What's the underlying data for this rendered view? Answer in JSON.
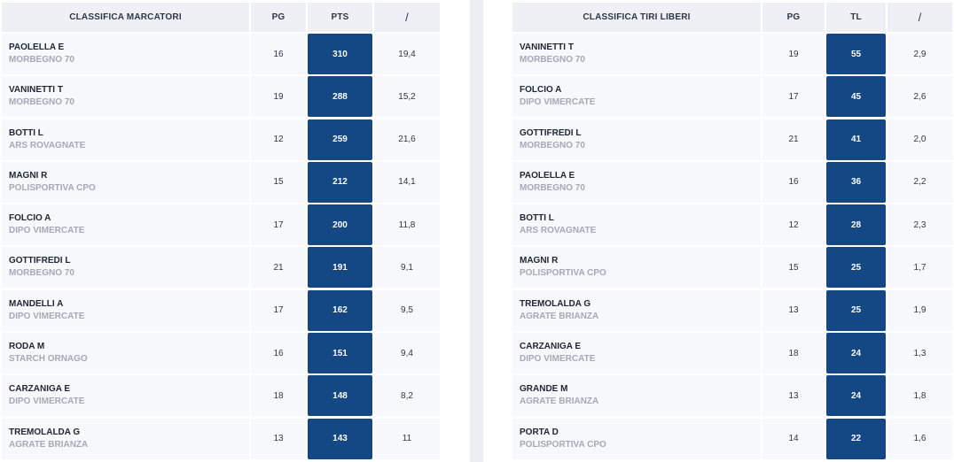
{
  "scorers": {
    "headers": [
      "CLASSIFICA MARCATORI",
      "PG",
      "PTS",
      "/"
    ],
    "rows": [
      {
        "name": "PAOLELLA E",
        "team": "MORBEGNO 70",
        "pg": "16",
        "value": "310",
        "avg": "19,4"
      },
      {
        "name": "VANINETTI T",
        "team": "MORBEGNO 70",
        "pg": "19",
        "value": "288",
        "avg": "15,2"
      },
      {
        "name": "BOTTI L",
        "team": "ARS ROVAGNATE",
        "pg": "12",
        "value": "259",
        "avg": "21,6"
      },
      {
        "name": "MAGNI R",
        "team": "POLISPORTIVA CPO",
        "pg": "15",
        "value": "212",
        "avg": "14,1"
      },
      {
        "name": "FOLCIO A",
        "team": "DIPO VIMERCATE",
        "pg": "17",
        "value": "200",
        "avg": "11,8"
      },
      {
        "name": "GOTTIFREDI L",
        "team": "MORBEGNO 70",
        "pg": "21",
        "value": "191",
        "avg": "9,1"
      },
      {
        "name": "MANDELLI A",
        "team": "DIPO VIMERCATE",
        "pg": "17",
        "value": "162",
        "avg": "9,5"
      },
      {
        "name": "RODA M",
        "team": "STARCH ORNAGO",
        "pg": "16",
        "value": "151",
        "avg": "9,4"
      },
      {
        "name": "CARZANIGA E",
        "team": "DIPO VIMERCATE",
        "pg": "18",
        "value": "148",
        "avg": "8,2"
      },
      {
        "name": "TREMOLALDA G",
        "team": "AGRATE BRIANZA",
        "pg": "13",
        "value": "143",
        "avg": "11"
      }
    ]
  },
  "free_throws": {
    "headers": [
      "CLASSIFICA TIRI LIBERI",
      "PG",
      "TL",
      "/"
    ],
    "rows": [
      {
        "name": "VANINETTI T",
        "team": "MORBEGNO 70",
        "pg": "19",
        "value": "55",
        "avg": "2,9"
      },
      {
        "name": "FOLCIO A",
        "team": "DIPO VIMERCATE",
        "pg": "17",
        "value": "45",
        "avg": "2,6"
      },
      {
        "name": "GOTTIFREDI L",
        "team": "MORBEGNO 70",
        "pg": "21",
        "value": "41",
        "avg": "2,0"
      },
      {
        "name": "PAOLELLA E",
        "team": "MORBEGNO 70",
        "pg": "16",
        "value": "36",
        "avg": "2,2"
      },
      {
        "name": "BOTTI L",
        "team": "ARS ROVAGNATE",
        "pg": "12",
        "value": "28",
        "avg": "2,3"
      },
      {
        "name": "MAGNI R",
        "team": "POLISPORTIVA CPO",
        "pg": "15",
        "value": "25",
        "avg": "1,7"
      },
      {
        "name": "TREMOLALDA G",
        "team": "AGRATE BRIANZA",
        "pg": "13",
        "value": "25",
        "avg": "1,9"
      },
      {
        "name": "CARZANIGA E",
        "team": "DIPO VIMERCATE",
        "pg": "18",
        "value": "24",
        "avg": "1,3"
      },
      {
        "name": "GRANDE M",
        "team": "AGRATE BRIANZA",
        "pg": "13",
        "value": "24",
        "avg": "1,8"
      },
      {
        "name": "PORTA D",
        "team": "POLISPORTIVA CPO",
        "pg": "14",
        "value": "22",
        "avg": "1,6"
      }
    ]
  },
  "colors": {
    "highlight": "#134885",
    "header_bg": "#eef0f5",
    "cell_bg": "#f7f8fb",
    "team_text": "#a4a9b8",
    "divider": "#eceef3"
  }
}
